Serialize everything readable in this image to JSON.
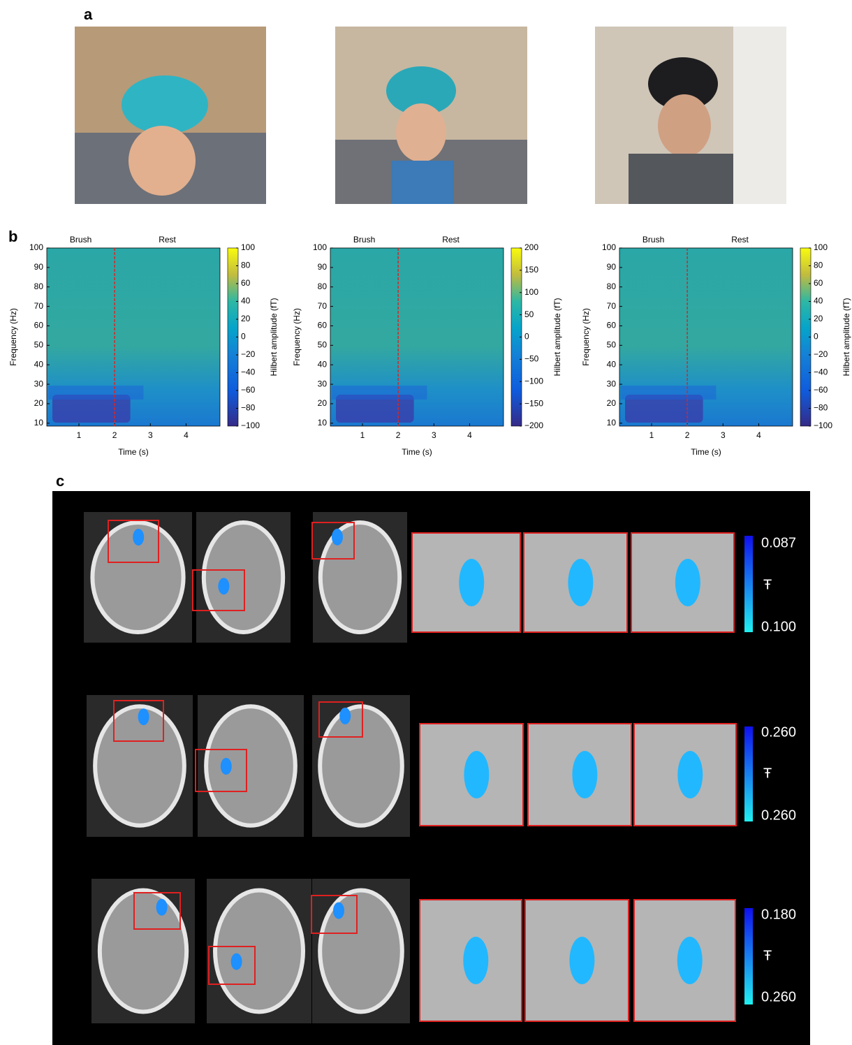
{
  "panels": [
    {
      "label": "a"
    },
    {
      "label": "b"
    },
    {
      "label": "c"
    }
  ],
  "chart_data": [
    {
      "type": "heatmap",
      "top_labels": [
        "Brush",
        "Rest"
      ],
      "xlabel": "Time (s)",
      "ylabel": "Frequency (Hz)",
      "xlim": [
        0.1,
        4.95
      ],
      "xticks": [
        1,
        2,
        3,
        4
      ],
      "ylim": [
        8.5,
        100
      ],
      "yticks": [
        10,
        20,
        30,
        40,
        50,
        60,
        70,
        80,
        90,
        100
      ],
      "marker_x": 2,
      "marker_color": "#d62728",
      "colorbar": {
        "label": "Hilbert amplitude (fT)",
        "lim": [
          -100,
          100
        ],
        "ticks": [
          {
            "value": -100,
            "label": "−100"
          },
          {
            "value": -80,
            "label": "−80"
          },
          {
            "value": -60,
            "label": "−60"
          },
          {
            "value": -40,
            "label": "−40"
          },
          {
            "value": -20,
            "label": "−20"
          },
          0,
          20,
          40,
          60,
          80,
          100
        ]
      }
    },
    {
      "type": "heatmap",
      "top_labels": [
        "Brush",
        "Rest"
      ],
      "xlabel": "Time (s)",
      "ylabel": "Frequency (Hz)",
      "xlim": [
        0.1,
        4.95
      ],
      "xticks": [
        1,
        2,
        3,
        4
      ],
      "ylim": [
        8.5,
        100
      ],
      "yticks": [
        10,
        20,
        30,
        40,
        50,
        60,
        70,
        80,
        90,
        100
      ],
      "marker_x": 2,
      "marker_color": "#d62728",
      "colorbar": {
        "label": "Hilbert amplitude (fT)",
        "lim": [
          -200,
          200
        ],
        "ticks": [
          {
            "value": -200,
            "label": "−200"
          },
          {
            "value": -150,
            "label": "−150"
          },
          {
            "value": -100,
            "label": "−100"
          },
          {
            "value": -50,
            "label": "−50"
          },
          0,
          50,
          100,
          150,
          200
        ]
      }
    },
    {
      "type": "heatmap",
      "top_labels": [
        "Brush",
        "Rest"
      ],
      "xlabel": "Time (s)",
      "ylabel": "Frequency (Hz)",
      "xlim": [
        0.1,
        4.95
      ],
      "xticks": [
        1,
        2,
        3,
        4
      ],
      "ylim": [
        8.5,
        100
      ],
      "yticks": [
        10,
        20,
        30,
        40,
        50,
        60,
        70,
        80,
        90,
        100
      ],
      "marker_x": 2,
      "marker_color": "#d62728",
      "colorbar": {
        "label": "Hilbert amplitude (fT)",
        "lim": [
          -100,
          100
        ],
        "ticks": [
          {
            "value": -100,
            "label": "−100"
          },
          {
            "value": -80,
            "label": "−80"
          },
          {
            "value": -60,
            "label": "−60"
          },
          {
            "value": -40,
            "label": "−40"
          },
          {
            "value": -20,
            "label": "−20"
          },
          0,
          20,
          40,
          60,
          80,
          100
        ]
      }
    }
  ],
  "mri_rows": [
    {
      "colorbar_labels": {
        "top": "0.087",
        "symbol": "Ŧ",
        "bottom": "0.100"
      }
    },
    {
      "colorbar_labels": {
        "top": "0.260",
        "symbol": "Ŧ",
        "bottom": "0.260"
      }
    },
    {
      "colorbar_labels": {
        "top": "0.180",
        "symbol": "Ŧ",
        "bottom": "0.260"
      }
    }
  ]
}
